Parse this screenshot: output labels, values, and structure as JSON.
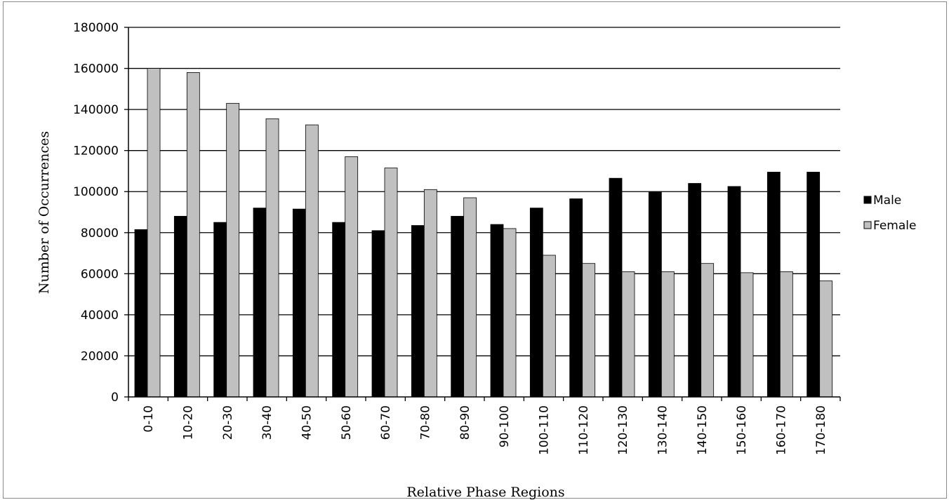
{
  "chart_data": {
    "type": "bar",
    "xlabel": "Relative Phase Regions",
    "ylabel": "Number of Occurrences",
    "ylim": [
      0,
      180000
    ],
    "yticks": [
      0,
      20000,
      40000,
      60000,
      80000,
      100000,
      120000,
      140000,
      160000,
      180000
    ],
    "grid": true,
    "legend_position": "right",
    "categories": [
      "0-10",
      "10-20",
      "20-30",
      "30-40",
      "40-50",
      "50-60",
      "60-70",
      "70-80",
      "80-90",
      "90-100",
      "100-110",
      "110-120",
      "120-130",
      "130-140",
      "140-150",
      "150-160",
      "160-170",
      "170-180"
    ],
    "series": [
      {
        "name": "Male",
        "color": "#000000",
        "values": [
          81500,
          88000,
          85000,
          92000,
          91500,
          85000,
          81000,
          83500,
          88000,
          84000,
          92000,
          96500,
          106500,
          100000,
          104000,
          102500,
          109500,
          109500
        ]
      },
      {
        "name": "Female",
        "color": "#c0c0c0",
        "values": [
          160000,
          158000,
          143000,
          135500,
          132500,
          117000,
          111500,
          101000,
          97000,
          82000,
          69000,
          65000,
          61000,
          61000,
          65000,
          60500,
          61000,
          56500
        ]
      }
    ]
  }
}
